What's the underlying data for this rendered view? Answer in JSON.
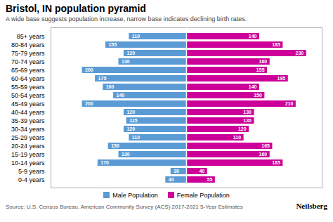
{
  "chart_data": {
    "type": "bar",
    "orientation": "horizontal",
    "title": "Bristol, IN population pyramid",
    "subtitle": "A wide base suggests population increase, narrow base indicates declining birth rates.",
    "source": "Source: U.S. Census Bureau, American Community Survey (ACS) 2017-2021 5-Year Estimates",
    "annotations": [
      "Neilsberg"
    ],
    "categories": [
      "85+ years",
      "80-84 years",
      "75-79 years",
      "70-74 years",
      "65-69 years",
      "60-64 years",
      "55-59 years",
      "50-54 years",
      "45-49 years",
      "40-44 years",
      "35-39 years",
      "30-34 years",
      "25-29 years",
      "20-24 years",
      "15-19 years",
      "10-14 years",
      "5-9 years",
      "0-4 years"
    ],
    "series": [
      {
        "name": "Male Population",
        "color": "#5b9bd5",
        "values": [
          110,
          155,
          120,
          130,
          200,
          175,
          160,
          140,
          200,
          120,
          115,
          120,
          110,
          150,
          130,
          170,
          30,
          40
        ]
      },
      {
        "name": "Female Population",
        "color": "#cc0099",
        "values": [
          140,
          185,
          230,
          160,
          155,
          195,
          140,
          150,
          210,
          130,
          130,
          120,
          110,
          165,
          160,
          185,
          40,
          55
        ]
      }
    ],
    "xlim": [
      -260,
      260
    ],
    "xticks": [],
    "tick_labels": "y",
    "grid": false,
    "legend": "bottom",
    "data_labels": true
  }
}
